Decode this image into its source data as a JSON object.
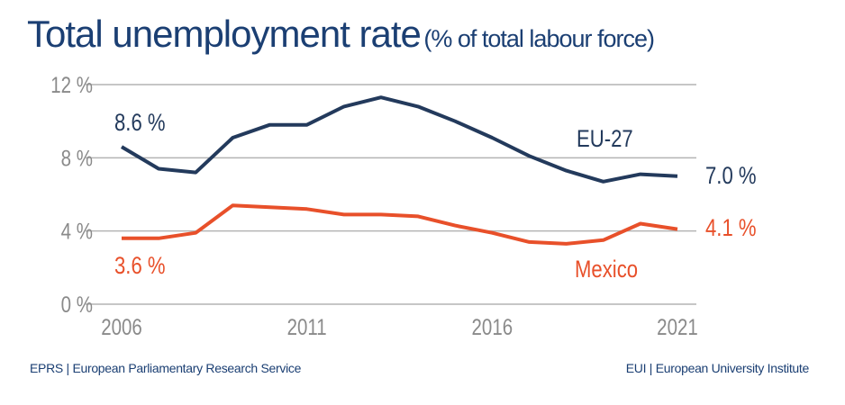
{
  "title": {
    "main": "Total unemployment rate",
    "sub": "(% of total labour force)"
  },
  "footer": {
    "left": "EPRS | European Parliamentary Research Service",
    "right": "EUI | European University Institute"
  },
  "chart_data": {
    "type": "line",
    "title": "Total unemployment rate (% of total labour force)",
    "xlabel": "",
    "ylabel": "",
    "x": [
      2006,
      2007,
      2008,
      2009,
      2010,
      2011,
      2012,
      2013,
      2014,
      2015,
      2016,
      2017,
      2018,
      2019,
      2020,
      2021
    ],
    "xlim": [
      2006,
      2021
    ],
    "ylim": [
      0,
      12
    ],
    "grid": true,
    "x_ticks": [
      2006,
      2011,
      2016,
      2021
    ],
    "x_tick_labels": [
      "2006",
      "2011",
      "2016",
      "2021"
    ],
    "y_ticks": [
      0,
      4,
      8,
      12
    ],
    "y_tick_labels": [
      "0 %",
      "4 %",
      "8 %",
      "12 %"
    ],
    "series": [
      {
        "name": "EU-27",
        "color": "#233a5c",
        "values": [
          8.6,
          7.4,
          7.2,
          9.1,
          9.8,
          9.8,
          10.8,
          11.3,
          10.8,
          10.0,
          9.1,
          8.1,
          7.3,
          6.7,
          7.1,
          7.0
        ],
        "label": "EU-27",
        "start_label": "8.6 %",
        "end_label": "7.0 %"
      },
      {
        "name": "Mexico",
        "color": "#e8502a",
        "values": [
          3.6,
          3.6,
          3.9,
          5.4,
          5.3,
          5.2,
          4.9,
          4.9,
          4.8,
          4.3,
          3.9,
          3.4,
          3.3,
          3.5,
          4.4,
          4.1
        ],
        "label": "Mexico",
        "start_label": "3.6 %",
        "end_label": "4.1 %"
      }
    ],
    "legend": "inline"
  },
  "colors": {
    "title": "#1b3f73",
    "grid": "#b4b4b4",
    "tick_text": "#8a8a8a"
  }
}
